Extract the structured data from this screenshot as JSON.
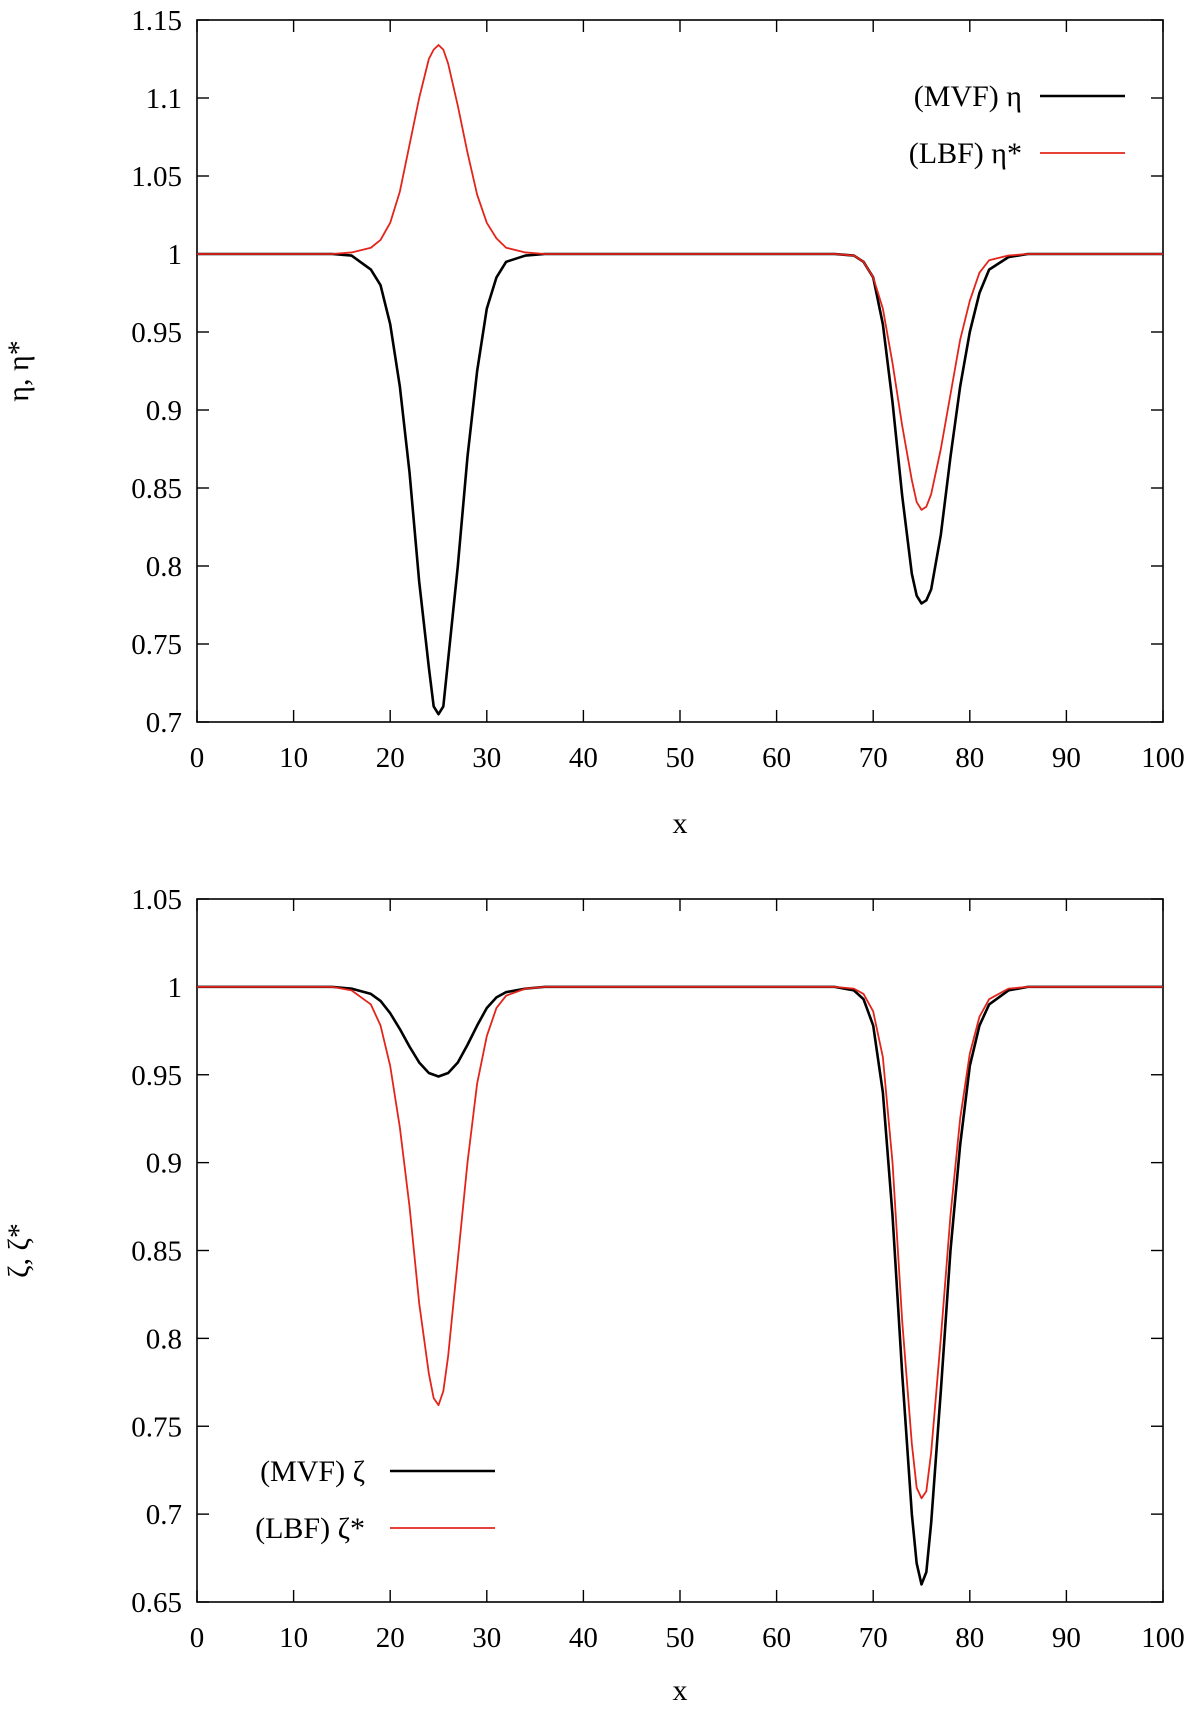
{
  "chart_data": [
    {
      "type": "line",
      "xlabel": "x",
      "ylabel": "η, η*",
      "xlim": [
        0,
        100
      ],
      "ylim": [
        0.7,
        1.15
      ],
      "xticks": [
        "0",
        "10",
        "20",
        "30",
        "40",
        "50",
        "60",
        "70",
        "80",
        "90",
        "100"
      ],
      "yticks": [
        "0.7",
        "0.75",
        "0.8",
        "0.85",
        "0.9",
        "0.95",
        "1",
        "1.05",
        "1.1",
        "1.15"
      ],
      "grid": false,
      "legend_position": "top-right",
      "series": [
        {
          "name": "(MVF) η",
          "color": "#000000",
          "points": [
            [
              0,
              1
            ],
            [
              14,
              1
            ],
            [
              16,
              0.999
            ],
            [
              18,
              0.99
            ],
            [
              19,
              0.98
            ],
            [
              20,
              0.955
            ],
            [
              21,
              0.915
            ],
            [
              22,
              0.86
            ],
            [
              23,
              0.79
            ],
            [
              24,
              0.735
            ],
            [
              24.5,
              0.71
            ],
            [
              25,
              0.705
            ],
            [
              25.5,
              0.71
            ],
            [
              26,
              0.74
            ],
            [
              27,
              0.8
            ],
            [
              28,
              0.87
            ],
            [
              29,
              0.925
            ],
            [
              30,
              0.965
            ],
            [
              31,
              0.985
            ],
            [
              32,
              0.995
            ],
            [
              34,
              0.999
            ],
            [
              36,
              1
            ],
            [
              66,
              1
            ],
            [
              68,
              0.999
            ],
            [
              69,
              0.995
            ],
            [
              70,
              0.985
            ],
            [
              71,
              0.955
            ],
            [
              72,
              0.905
            ],
            [
              73,
              0.845
            ],
            [
              74,
              0.795
            ],
            [
              74.5,
              0.781
            ],
            [
              75,
              0.776
            ],
            [
              75.5,
              0.778
            ],
            [
              76,
              0.785
            ],
            [
              77,
              0.82
            ],
            [
              78,
              0.87
            ],
            [
              79,
              0.915
            ],
            [
              80,
              0.95
            ],
            [
              81,
              0.975
            ],
            [
              82,
              0.99
            ],
            [
              84,
              0.998
            ],
            [
              86,
              1
            ],
            [
              100,
              1
            ]
          ]
        },
        {
          "name": "(LBF) η*",
          "color": "#e3241b",
          "points": [
            [
              0,
              1
            ],
            [
              14,
              1
            ],
            [
              16,
              1.001
            ],
            [
              18,
              1.004
            ],
            [
              19,
              1.009
            ],
            [
              20,
              1.02
            ],
            [
              21,
              1.04
            ],
            [
              22,
              1.07
            ],
            [
              23,
              1.1
            ],
            [
              24,
              1.125
            ],
            [
              24.5,
              1.131
            ],
            [
              25,
              1.134
            ],
            [
              25.5,
              1.131
            ],
            [
              26,
              1.122
            ],
            [
              27,
              1.095
            ],
            [
              28,
              1.065
            ],
            [
              29,
              1.038
            ],
            [
              30,
              1.02
            ],
            [
              31,
              1.01
            ],
            [
              32,
              1.004
            ],
            [
              34,
              1.001
            ],
            [
              36,
              1
            ],
            [
              66,
              1
            ],
            [
              68,
              0.999
            ],
            [
              69,
              0.995
            ],
            [
              70,
              0.985
            ],
            [
              71,
              0.965
            ],
            [
              72,
              0.93
            ],
            [
              73,
              0.89
            ],
            [
              74,
              0.855
            ],
            [
              74.5,
              0.841
            ],
            [
              75,
              0.836
            ],
            [
              75.5,
              0.838
            ],
            [
              76,
              0.846
            ],
            [
              77,
              0.875
            ],
            [
              78,
              0.91
            ],
            [
              79,
              0.945
            ],
            [
              80,
              0.97
            ],
            [
              81,
              0.988
            ],
            [
              82,
              0.996
            ],
            [
              84,
              0.999
            ],
            [
              86,
              1
            ],
            [
              100,
              1
            ]
          ]
        }
      ]
    },
    {
      "type": "line",
      "xlabel": "x",
      "ylabel": "ζ, ζ*",
      "xlim": [
        0,
        100
      ],
      "ylim": [
        0.65,
        1.05
      ],
      "xticks": [
        "0",
        "10",
        "20",
        "30",
        "40",
        "50",
        "60",
        "70",
        "80",
        "90",
        "100"
      ],
      "yticks": [
        "0.65",
        "0.7",
        "0.75",
        "0.8",
        "0.85",
        "0.9",
        "0.95",
        "1",
        "1.05"
      ],
      "grid": false,
      "legend_position": "bottom-left",
      "series": [
        {
          "name": "(MVF) ζ",
          "color": "#000000",
          "points": [
            [
              0,
              1
            ],
            [
              14,
              1
            ],
            [
              16,
              0.999
            ],
            [
              18,
              0.996
            ],
            [
              19,
              0.992
            ],
            [
              20,
              0.985
            ],
            [
              21,
              0.976
            ],
            [
              22,
              0.966
            ],
            [
              23,
              0.957
            ],
            [
              24,
              0.951
            ],
            [
              25,
              0.949
            ],
            [
              26,
              0.951
            ],
            [
              27,
              0.957
            ],
            [
              28,
              0.967
            ],
            [
              29,
              0.978
            ],
            [
              30,
              0.988
            ],
            [
              31,
              0.994
            ],
            [
              32,
              0.997
            ],
            [
              34,
              0.999
            ],
            [
              36,
              1
            ],
            [
              66,
              1
            ],
            [
              68,
              0.998
            ],
            [
              69,
              0.993
            ],
            [
              70,
              0.978
            ],
            [
              71,
              0.94
            ],
            [
              72,
              0.87
            ],
            [
              73,
              0.78
            ],
            [
              74,
              0.7
            ],
            [
              74.5,
              0.672
            ],
            [
              75,
              0.66
            ],
            [
              75.5,
              0.667
            ],
            [
              76,
              0.695
            ],
            [
              77,
              0.77
            ],
            [
              78,
              0.85
            ],
            [
              79,
              0.91
            ],
            [
              80,
              0.955
            ],
            [
              81,
              0.978
            ],
            [
              82,
              0.99
            ],
            [
              84,
              0.998
            ],
            [
              86,
              1
            ],
            [
              100,
              1
            ]
          ]
        },
        {
          "name": "(LBF) ζ*",
          "color": "#e3241b",
          "points": [
            [
              0,
              1
            ],
            [
              14,
              1
            ],
            [
              16,
              0.998
            ],
            [
              18,
              0.99
            ],
            [
              19,
              0.978
            ],
            [
              20,
              0.955
            ],
            [
              21,
              0.92
            ],
            [
              22,
              0.875
            ],
            [
              23,
              0.82
            ],
            [
              24,
              0.78
            ],
            [
              24.5,
              0.766
            ],
            [
              25,
              0.762
            ],
            [
              25.5,
              0.77
            ],
            [
              26,
              0.79
            ],
            [
              27,
              0.845
            ],
            [
              28,
              0.9
            ],
            [
              29,
              0.945
            ],
            [
              30,
              0.972
            ],
            [
              31,
              0.988
            ],
            [
              32,
              0.995
            ],
            [
              34,
              0.999
            ],
            [
              36,
              1
            ],
            [
              66,
              1
            ],
            [
              68,
              0.999
            ],
            [
              69,
              0.996
            ],
            [
              70,
              0.986
            ],
            [
              71,
              0.96
            ],
            [
              72,
              0.9
            ],
            [
              73,
              0.81
            ],
            [
              74,
              0.74
            ],
            [
              74.5,
              0.715
            ],
            [
              75,
              0.709
            ],
            [
              75.5,
              0.713
            ],
            [
              76,
              0.735
            ],
            [
              77,
              0.8
            ],
            [
              78,
              0.87
            ],
            [
              79,
              0.925
            ],
            [
              80,
              0.962
            ],
            [
              81,
              0.983
            ],
            [
              82,
              0.993
            ],
            [
              84,
              0.999
            ],
            [
              86,
              1
            ],
            [
              100,
              1
            ]
          ]
        }
      ]
    }
  ]
}
